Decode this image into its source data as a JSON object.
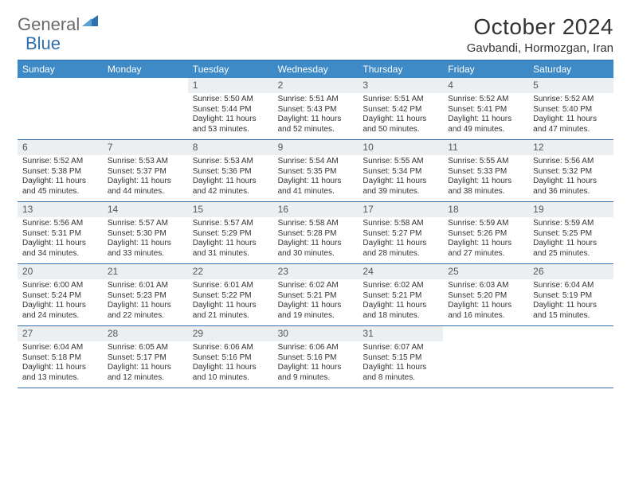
{
  "logo": {
    "word1": "General",
    "word2": "Blue"
  },
  "title": "October 2024",
  "location": "Gavbandi, Hormozgan, Iran",
  "colors": {
    "header_bg": "#3d8ac7",
    "rule": "#2f6fb0",
    "daynum_bg": "#eceff1",
    "text": "#333333",
    "logo_gray": "#6a6a6a"
  },
  "weekdays": [
    "Sunday",
    "Monday",
    "Tuesday",
    "Wednesday",
    "Thursday",
    "Friday",
    "Saturday"
  ],
  "weeks": [
    [
      null,
      null,
      {
        "d": "1",
        "sr": "Sunrise: 5:50 AM",
        "ss": "Sunset: 5:44 PM",
        "dl1": "Daylight: 11 hours",
        "dl2": "and 53 minutes."
      },
      {
        "d": "2",
        "sr": "Sunrise: 5:51 AM",
        "ss": "Sunset: 5:43 PM",
        "dl1": "Daylight: 11 hours",
        "dl2": "and 52 minutes."
      },
      {
        "d": "3",
        "sr": "Sunrise: 5:51 AM",
        "ss": "Sunset: 5:42 PM",
        "dl1": "Daylight: 11 hours",
        "dl2": "and 50 minutes."
      },
      {
        "d": "4",
        "sr": "Sunrise: 5:52 AM",
        "ss": "Sunset: 5:41 PM",
        "dl1": "Daylight: 11 hours",
        "dl2": "and 49 minutes."
      },
      {
        "d": "5",
        "sr": "Sunrise: 5:52 AM",
        "ss": "Sunset: 5:40 PM",
        "dl1": "Daylight: 11 hours",
        "dl2": "and 47 minutes."
      }
    ],
    [
      {
        "d": "6",
        "sr": "Sunrise: 5:52 AM",
        "ss": "Sunset: 5:38 PM",
        "dl1": "Daylight: 11 hours",
        "dl2": "and 45 minutes."
      },
      {
        "d": "7",
        "sr": "Sunrise: 5:53 AM",
        "ss": "Sunset: 5:37 PM",
        "dl1": "Daylight: 11 hours",
        "dl2": "and 44 minutes."
      },
      {
        "d": "8",
        "sr": "Sunrise: 5:53 AM",
        "ss": "Sunset: 5:36 PM",
        "dl1": "Daylight: 11 hours",
        "dl2": "and 42 minutes."
      },
      {
        "d": "9",
        "sr": "Sunrise: 5:54 AM",
        "ss": "Sunset: 5:35 PM",
        "dl1": "Daylight: 11 hours",
        "dl2": "and 41 minutes."
      },
      {
        "d": "10",
        "sr": "Sunrise: 5:55 AM",
        "ss": "Sunset: 5:34 PM",
        "dl1": "Daylight: 11 hours",
        "dl2": "and 39 minutes."
      },
      {
        "d": "11",
        "sr": "Sunrise: 5:55 AM",
        "ss": "Sunset: 5:33 PM",
        "dl1": "Daylight: 11 hours",
        "dl2": "and 38 minutes."
      },
      {
        "d": "12",
        "sr": "Sunrise: 5:56 AM",
        "ss": "Sunset: 5:32 PM",
        "dl1": "Daylight: 11 hours",
        "dl2": "and 36 minutes."
      }
    ],
    [
      {
        "d": "13",
        "sr": "Sunrise: 5:56 AM",
        "ss": "Sunset: 5:31 PM",
        "dl1": "Daylight: 11 hours",
        "dl2": "and 34 minutes."
      },
      {
        "d": "14",
        "sr": "Sunrise: 5:57 AM",
        "ss": "Sunset: 5:30 PM",
        "dl1": "Daylight: 11 hours",
        "dl2": "and 33 minutes."
      },
      {
        "d": "15",
        "sr": "Sunrise: 5:57 AM",
        "ss": "Sunset: 5:29 PM",
        "dl1": "Daylight: 11 hours",
        "dl2": "and 31 minutes."
      },
      {
        "d": "16",
        "sr": "Sunrise: 5:58 AM",
        "ss": "Sunset: 5:28 PM",
        "dl1": "Daylight: 11 hours",
        "dl2": "and 30 minutes."
      },
      {
        "d": "17",
        "sr": "Sunrise: 5:58 AM",
        "ss": "Sunset: 5:27 PM",
        "dl1": "Daylight: 11 hours",
        "dl2": "and 28 minutes."
      },
      {
        "d": "18",
        "sr": "Sunrise: 5:59 AM",
        "ss": "Sunset: 5:26 PM",
        "dl1": "Daylight: 11 hours",
        "dl2": "and 27 minutes."
      },
      {
        "d": "19",
        "sr": "Sunrise: 5:59 AM",
        "ss": "Sunset: 5:25 PM",
        "dl1": "Daylight: 11 hours",
        "dl2": "and 25 minutes."
      }
    ],
    [
      {
        "d": "20",
        "sr": "Sunrise: 6:00 AM",
        "ss": "Sunset: 5:24 PM",
        "dl1": "Daylight: 11 hours",
        "dl2": "and 24 minutes."
      },
      {
        "d": "21",
        "sr": "Sunrise: 6:01 AM",
        "ss": "Sunset: 5:23 PM",
        "dl1": "Daylight: 11 hours",
        "dl2": "and 22 minutes."
      },
      {
        "d": "22",
        "sr": "Sunrise: 6:01 AM",
        "ss": "Sunset: 5:22 PM",
        "dl1": "Daylight: 11 hours",
        "dl2": "and 21 minutes."
      },
      {
        "d": "23",
        "sr": "Sunrise: 6:02 AM",
        "ss": "Sunset: 5:21 PM",
        "dl1": "Daylight: 11 hours",
        "dl2": "and 19 minutes."
      },
      {
        "d": "24",
        "sr": "Sunrise: 6:02 AM",
        "ss": "Sunset: 5:21 PM",
        "dl1": "Daylight: 11 hours",
        "dl2": "and 18 minutes."
      },
      {
        "d": "25",
        "sr": "Sunrise: 6:03 AM",
        "ss": "Sunset: 5:20 PM",
        "dl1": "Daylight: 11 hours",
        "dl2": "and 16 minutes."
      },
      {
        "d": "26",
        "sr": "Sunrise: 6:04 AM",
        "ss": "Sunset: 5:19 PM",
        "dl1": "Daylight: 11 hours",
        "dl2": "and 15 minutes."
      }
    ],
    [
      {
        "d": "27",
        "sr": "Sunrise: 6:04 AM",
        "ss": "Sunset: 5:18 PM",
        "dl1": "Daylight: 11 hours",
        "dl2": "and 13 minutes."
      },
      {
        "d": "28",
        "sr": "Sunrise: 6:05 AM",
        "ss": "Sunset: 5:17 PM",
        "dl1": "Daylight: 11 hours",
        "dl2": "and 12 minutes."
      },
      {
        "d": "29",
        "sr": "Sunrise: 6:06 AM",
        "ss": "Sunset: 5:16 PM",
        "dl1": "Daylight: 11 hours",
        "dl2": "and 10 minutes."
      },
      {
        "d": "30",
        "sr": "Sunrise: 6:06 AM",
        "ss": "Sunset: 5:16 PM",
        "dl1": "Daylight: 11 hours",
        "dl2": "and 9 minutes."
      },
      {
        "d": "31",
        "sr": "Sunrise: 6:07 AM",
        "ss": "Sunset: 5:15 PM",
        "dl1": "Daylight: 11 hours",
        "dl2": "and 8 minutes."
      },
      null,
      null
    ]
  ]
}
